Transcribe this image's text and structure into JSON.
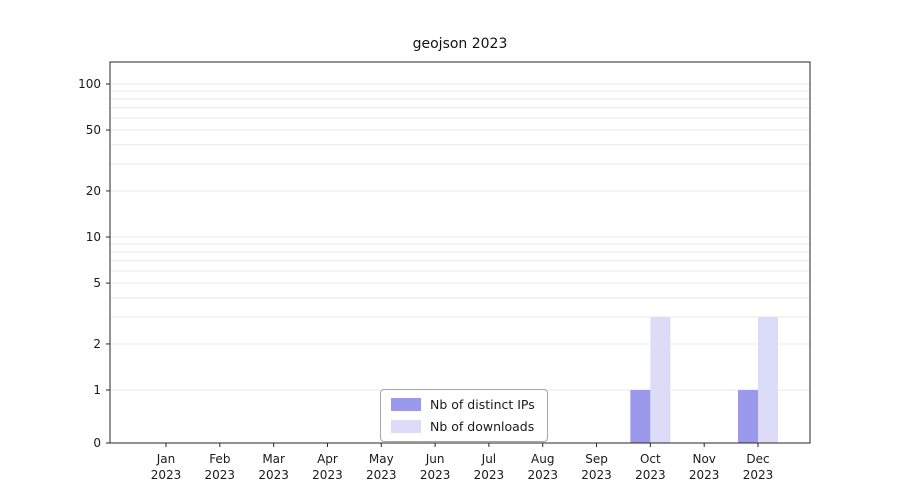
{
  "title": "geojson 2023",
  "chart_data": {
    "type": "bar",
    "title": "geojson 2023",
    "xlabel": "",
    "ylabel": "",
    "scale": "symlog",
    "grid": "horizontal",
    "legend_position": "bottom-center",
    "categories": [
      "Jan",
      "Feb",
      "Mar",
      "Apr",
      "May",
      "Jun",
      "Jul",
      "Aug",
      "Sep",
      "Oct",
      "Nov",
      "Dec"
    ],
    "year": "2023",
    "yticks": [
      0,
      1,
      2,
      5,
      10,
      20,
      50,
      100
    ],
    "ylim": [
      0,
      120
    ],
    "series": [
      {
        "name": "Nb of distinct IPs",
        "color": "#9a99ec",
        "values": [
          0,
          0,
          0,
          0,
          0,
          0,
          0,
          0,
          0,
          1,
          0,
          1
        ]
      },
      {
        "name": "Nb of downloads",
        "color": "#dcdcf8",
        "values": [
          0,
          0,
          0,
          0,
          0,
          0,
          0,
          0,
          0,
          3,
          0,
          3
        ]
      }
    ]
  }
}
